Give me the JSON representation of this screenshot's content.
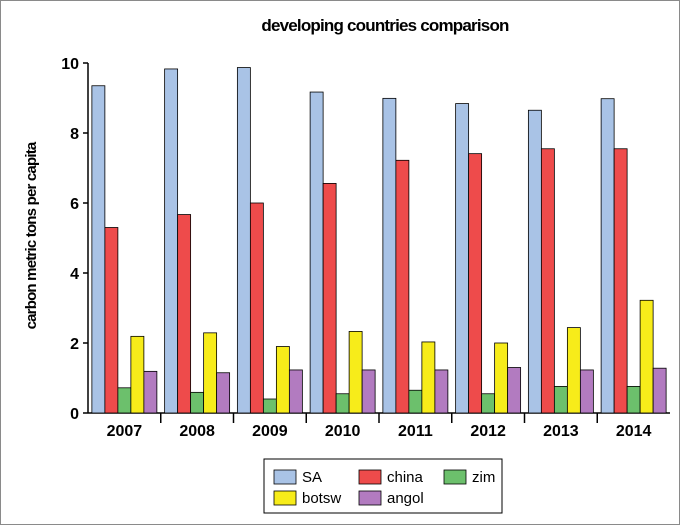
{
  "chart_data": {
    "type": "bar",
    "title": "developing countries comparison",
    "xlabel": "",
    "ylabel": "carbon metric tons per capita",
    "categories": [
      "2007",
      "2008",
      "2009",
      "2010",
      "2011",
      "2012",
      "2013",
      "2014"
    ],
    "ylim": [
      0,
      10
    ],
    "yticks": [
      "0",
      "2",
      "4",
      "6",
      "8",
      "10"
    ],
    "grid": false,
    "legend_position": "bottom",
    "series": [
      {
        "name": "SA",
        "color": "#a9c3e6",
        "values": [
          9.35,
          9.83,
          9.87,
          9.17,
          8.99,
          8.84,
          8.65,
          8.98
        ]
      },
      {
        "name": "china",
        "color": "#ee4b4b",
        "values": [
          5.3,
          5.67,
          6.0,
          6.56,
          7.22,
          7.41,
          7.55,
          7.55
        ]
      },
      {
        "name": "zim",
        "color": "#6cc06c",
        "values": [
          0.72,
          0.59,
          0.4,
          0.55,
          0.65,
          0.55,
          0.76,
          0.76
        ]
      },
      {
        "name": "botsw",
        "color": "#f7ec1a",
        "values": [
          2.19,
          2.29,
          1.9,
          2.33,
          2.03,
          2.0,
          2.44,
          3.22
        ]
      },
      {
        "name": "angol",
        "color": "#b27bc0",
        "values": [
          1.19,
          1.15,
          1.23,
          1.23,
          1.23,
          1.3,
          1.23,
          1.28
        ]
      }
    ]
  }
}
